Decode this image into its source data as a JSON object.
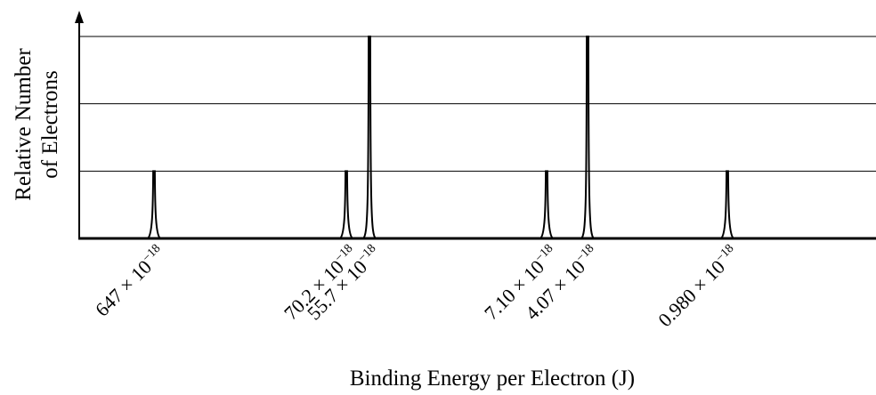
{
  "chart_data": {
    "type": "line",
    "xlabel": "Binding Energy per Electron (J)",
    "ylabel_line1": "Relative Number",
    "ylabel_line2": "of Electrons",
    "ylim": [
      0,
      3
    ],
    "grid": "horizontal",
    "x_scale": "log-like (decreasing to the right)",
    "x_units": "J",
    "peaks": [
      {
        "mantissa": "647",
        "exponent": "−18",
        "value": 6.47e-16,
        "height": 1
      },
      {
        "mantissa": "70.2",
        "exponent": "−18",
        "value": 7.02e-17,
        "height": 1
      },
      {
        "mantissa": "55.7",
        "exponent": "−18",
        "value": 5.57e-17,
        "height": 3
      },
      {
        "mantissa": "7.10",
        "exponent": "−18",
        "value": 7.1e-18,
        "height": 1
      },
      {
        "mantissa": "4.07",
        "exponent": "−18",
        "value": 4.07e-18,
        "height": 3
      },
      {
        "mantissa": "0.980",
        "exponent": "−18",
        "value": 9.8e-19,
        "height": 1
      }
    ]
  }
}
